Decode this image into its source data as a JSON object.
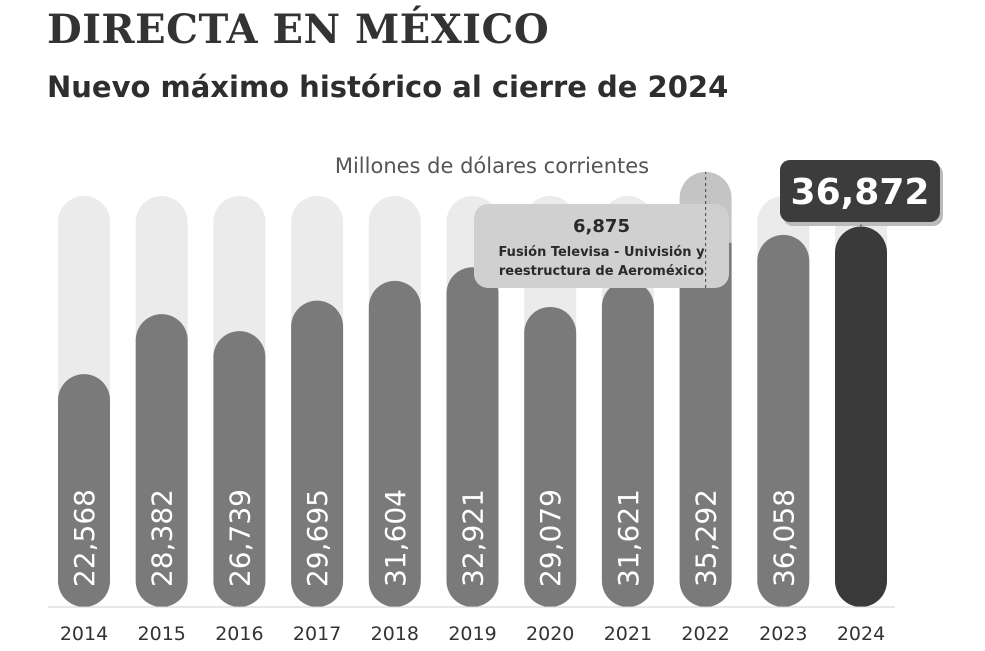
{
  "header": {
    "title": "DIRECTA EN MÉXICO",
    "subtitle": "Nuevo máximo histórico al cierre de 2024"
  },
  "chart_data": {
    "type": "bar",
    "title": "DIRECTA EN MÉXICO",
    "subtitle": "Nuevo máximo histórico al cierre de 2024",
    "ylabel": "Millones de dólares corrientes",
    "xlabel": "",
    "categories": [
      "2014",
      "2015",
      "2016",
      "2017",
      "2018",
      "2019",
      "2020",
      "2021",
      "2022",
      "2023",
      "2024"
    ],
    "values": [
      22568,
      28382,
      26739,
      29695,
      31604,
      32921,
      29079,
      31621,
      35292,
      36058,
      36872
    ],
    "value_labels": [
      "22,568",
      "28,382",
      "26,739",
      "29,695",
      "31,604",
      "32,921",
      "29,079",
      "31,621",
      "35,292",
      "36,058",
      "36,872"
    ],
    "ylim": [
      0,
      41000
    ],
    "grid": false,
    "stacked_extra": {
      "category": "2022",
      "value": 6875,
      "label": "6,875",
      "annotation_lines": [
        "Fusión Televisa - Univisión y",
        "reestructura de Aeroméxico"
      ]
    },
    "highlight": {
      "category": "2024",
      "label": "36,872"
    }
  },
  "colors": {
    "background_track": "#ebebeb",
    "bar": "#7a7a7a",
    "bar_highlight": "#3a3a3b",
    "bar_extra": "#c4c4c4",
    "annotation_box": "#d0d0d0",
    "highlight_box": "#3c3c3c"
  }
}
